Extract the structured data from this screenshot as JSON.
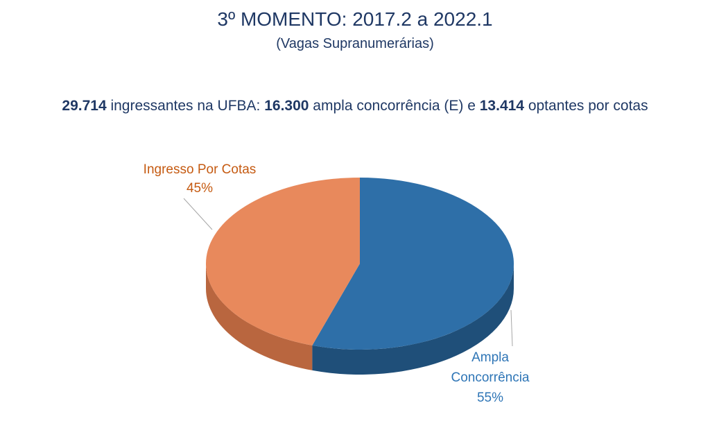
{
  "header": {
    "title": "3º MOMENTO: 2017.2 a 2022.1",
    "subtitle": "(Vagas Supranumerárias)"
  },
  "summary": {
    "total": "29.714",
    "text1": " ingressantes na UFBA: ",
    "ampla": "16.300",
    "text2": " ampla concorrência (E) e ",
    "cotas": "13.414",
    "text3": " optantes por cotas"
  },
  "colors": {
    "ampla_top": "#2e6fa8",
    "ampla_side": "#1f4f79",
    "cotas_top": "#e8895c",
    "cotas_side": "#b9663f"
  },
  "chart_data": {
    "type": "pie",
    "style": "3d",
    "slices": [
      {
        "label_lines": [
          "Ampla",
          "Concorrência"
        ],
        "percent_label": "55%",
        "value": 55
      },
      {
        "label_lines": [
          "Ingresso Por Cotas"
        ],
        "percent_label": "45%",
        "value": 45
      }
    ]
  }
}
